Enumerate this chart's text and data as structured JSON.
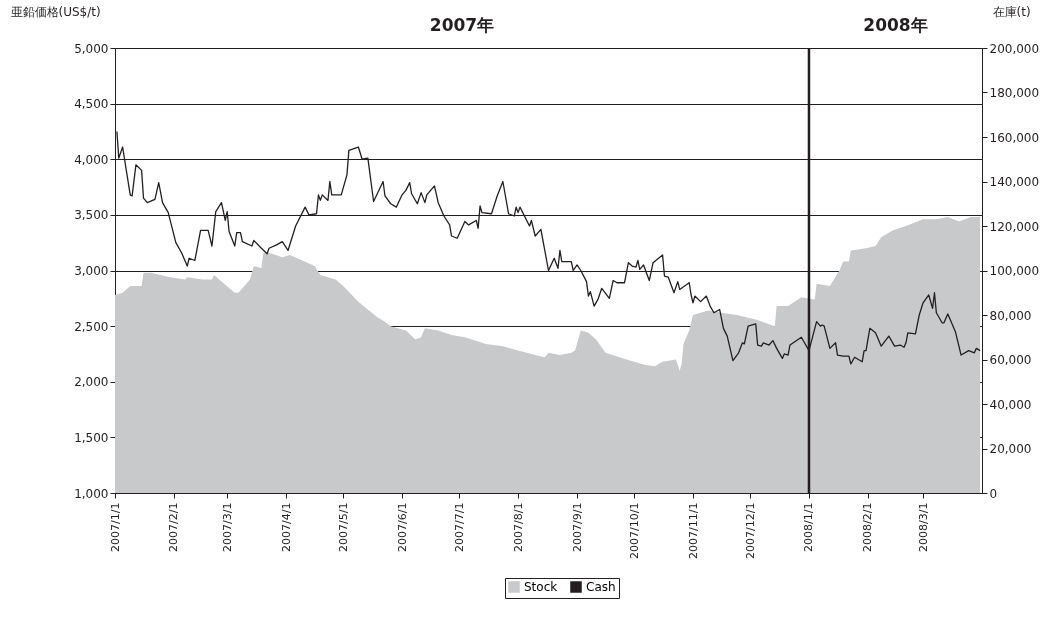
{
  "chart_data": {
    "type": "line",
    "ylabel": "亜鉛価格(US$/t)",
    "y2label": "在庫(t)",
    "ylim": [
      1000,
      5000
    ],
    "yticks": [
      {
        "value": 1000,
        "label": "1,000"
      },
      {
        "value": 1500,
        "label": "1,500"
      },
      {
        "value": 2000,
        "label": "2,000"
      },
      {
        "value": 2500,
        "label": "2,500"
      },
      {
        "value": 3000,
        "label": "3,000"
      },
      {
        "value": 3500,
        "label": "3,500"
      },
      {
        "value": 4000,
        "label": "4,000"
      },
      {
        "value": 4500,
        "label": "4,500"
      },
      {
        "value": 5000,
        "label": "5,000"
      }
    ],
    "y2lim": [
      0,
      200000
    ],
    "y2ticks": [
      0,
      {
        "value": 20000,
        "label": "20,000"
      },
      {
        "value": 40000,
        "label": "40,000"
      },
      {
        "value": 60000,
        "label": "60,000"
      },
      {
        "value": 80000,
        "label": "80,000"
      },
      {
        "value": 100000,
        "label": "100,000"
      },
      {
        "value": 120000,
        "label": "120,000"
      },
      {
        "value": 140000,
        "label": "140,000"
      },
      {
        "value": 160000,
        "label": "160,000"
      },
      {
        "value": 180000,
        "label": "180,000"
      },
      {
        "value": 200000,
        "label": "200,000"
      }
    ],
    "xlim": [
      "2007-01-01",
      "2008-04-01"
    ],
    "xticks": [
      {
        "value": "2007-01-01",
        "label": "2007/1/1"
      },
      {
        "value": "2007-02-01",
        "label": "2007/2/1"
      },
      {
        "value": "2007-03-01",
        "label": "2007/3/1"
      },
      {
        "value": "2007-04-01",
        "label": "2007/4/1"
      },
      {
        "value": "2007-05-01",
        "label": "2007/5/1"
      },
      {
        "value": "2007-06-01",
        "label": "2007/6/1"
      },
      {
        "value": "2007-07-01",
        "label": "2007/7/1"
      },
      {
        "value": "2007-08-01",
        "label": "2007/8/1"
      },
      {
        "value": "2007-09-01",
        "label": "2007/9/1"
      },
      {
        "value": "2007-10-01",
        "label": "2007/10/1"
      },
      {
        "value": "2007-11-01",
        "label": "2007/11/1"
      },
      {
        "value": "2007-12-01",
        "label": "2007/12/1"
      },
      {
        "value": "2008-01-01",
        "label": "2008/1/1"
      },
      {
        "value": "2008-02-01",
        "label": "2008/2/1"
      },
      {
        "value": "2008-03-01",
        "label": "2008/3/1"
      }
    ],
    "grid": "y",
    "legend": "bottom",
    "ref_lines": [
      {
        "axis": "x",
        "value": "2008-01-01",
        "color": "#231f20"
      }
    ],
    "annotations": [
      "2007年",
      "2008年"
    ],
    "series": [
      {
        "name": "Stock",
        "type": "area",
        "axis": "y2",
        "color": "#c8c9cb",
        "x": [
          "2007-01-01",
          "2007-01-05",
          "2007-01-09",
          "2007-01-13",
          "2007-01-15",
          "2007-01-16",
          "2007-01-20",
          "2007-01-30",
          "2007-02-07",
          "2007-02-08",
          "2007-02-16",
          "2007-02-21",
          "2007-02-22",
          "2007-03-05",
          "2007-03-07",
          "2007-03-13",
          "2007-03-15",
          "2007-03-19",
          "2007-03-20",
          "2007-03-23",
          "2007-03-30",
          "2007-04-03",
          "2007-04-16",
          "2007-04-19",
          "2007-04-27",
          "2007-05-01",
          "2007-05-09",
          "2007-05-16",
          "2007-05-19",
          "2007-05-23",
          "2007-05-26",
          "2007-06-03",
          "2007-06-08",
          "2007-06-11",
          "2007-06-13",
          "2007-06-20",
          "2007-06-27",
          "2007-07-04",
          "2007-07-15",
          "2007-07-24",
          "2007-08-01",
          "2007-08-10",
          "2007-08-15",
          "2007-08-17",
          "2007-08-23",
          "2007-08-29",
          "2007-08-31",
          "2007-09-03",
          "2007-09-07",
          "2007-09-11",
          "2007-09-16",
          "2007-09-27",
          "2007-10-07",
          "2007-10-12",
          "2007-10-16",
          "2007-10-23",
          "2007-10-25",
          "2007-10-26",
          "2007-10-27",
          "2007-10-30",
          "2007-11-01",
          "2007-11-09",
          "2007-11-16",
          "2007-11-24",
          "2007-12-04",
          "2007-12-14",
          "2007-12-15",
          "2007-12-21",
          "2007-12-28",
          "2008-01-04",
          "2008-01-05",
          "2008-01-12",
          "2008-01-17",
          "2008-01-19",
          "2008-01-22",
          "2008-01-23",
          "2008-01-31",
          "2008-02-05",
          "2008-02-08",
          "2008-02-14",
          "2008-02-21",
          "2008-03-01",
          "2008-03-08",
          "2008-03-14",
          "2008-03-20",
          "2008-03-26",
          "2008-03-31"
        ],
        "values": [
          89000,
          90000,
          93000,
          93000,
          93000,
          99000,
          99000,
          97000,
          96000,
          97000,
          96000,
          96000,
          98000,
          90000,
          90000,
          96000,
          102000,
          101000,
          108000,
          108000,
          106000,
          107000,
          102000,
          98000,
          96000,
          93000,
          86000,
          81000,
          79000,
          77000,
          75000,
          73000,
          69000,
          70000,
          74000,
          73000,
          71000,
          70000,
          67000,
          66000,
          64000,
          62000,
          61000,
          63000,
          62000,
          63000,
          64000,
          73000,
          72000,
          69000,
          63000,
          60000,
          57500,
          57000,
          59000,
          60000,
          55000,
          58000,
          67000,
          73000,
          80000,
          82000,
          81000,
          80000,
          78000,
          75000,
          84000,
          84000,
          88000,
          87000,
          94000,
          93000,
          100000,
          104000,
          104000,
          109000,
          110000,
          111000,
          115000,
          118000,
          120000,
          123000,
          123000,
          124000,
          122000,
          124000,
          124000
        ]
      },
      {
        "name": "Cash",
        "color": "#231f20",
        "x": [
          "2007-01-02",
          "2007-01-03",
          "2007-01-05",
          "2007-01-09",
          "2007-01-10",
          "2007-01-12",
          "2007-01-15",
          "2007-01-16",
          "2007-01-18",
          "2007-01-22",
          "2007-01-24",
          "2007-01-26",
          "2007-01-29",
          "2007-02-02",
          "2007-02-05",
          "2007-02-08",
          "2007-02-09",
          "2007-02-12",
          "2007-02-15",
          "2007-02-19",
          "2007-02-21",
          "2007-02-23",
          "2007-02-26",
          "2007-02-28",
          "2007-03-01",
          "2007-03-02",
          "2007-03-05",
          "2007-03-06",
          "2007-03-08",
          "2007-03-09",
          "2007-03-14",
          "2007-03-15",
          "2007-03-19",
          "2007-03-22",
          "2007-03-23",
          "2007-03-27",
          "2007-03-30",
          "2007-04-02",
          "2007-04-06",
          "2007-04-11",
          "2007-04-13",
          "2007-04-17",
          "2007-04-18",
          "2007-04-19",
          "2007-04-20",
          "2007-04-23",
          "2007-04-24",
          "2007-04-25",
          "2007-04-30",
          "2007-05-03",
          "2007-05-04",
          "2007-05-09",
          "2007-05-11",
          "2007-05-14",
          "2007-05-17",
          "2007-05-22",
          "2007-05-23",
          "2007-05-26",
          "2007-05-29",
          "2007-06-01",
          "2007-06-03",
          "2007-06-05",
          "2007-06-06",
          "2007-06-09",
          "2007-06-11",
          "2007-06-13",
          "2007-06-14",
          "2007-06-18",
          "2007-06-20",
          "2007-06-23",
          "2007-06-26",
          "2007-06-27",
          "2007-06-30",
          "2007-07-04",
          "2007-07-06",
          "2007-07-10",
          "2007-07-11",
          "2007-07-12",
          "2007-07-13",
          "2007-07-18",
          "2007-07-21",
          "2007-07-24",
          "2007-07-27",
          "2007-07-30",
          "2007-07-31",
          "2007-08-01",
          "2007-08-02",
          "2007-08-07",
          "2007-08-08",
          "2007-08-10",
          "2007-08-13",
          "2007-08-17",
          "2007-08-20",
          "2007-08-22",
          "2007-08-23",
          "2007-08-24",
          "2007-08-29",
          "2007-08-30",
          "2007-09-01",
          "2007-09-03",
          "2007-09-06",
          "2007-09-07",
          "2007-09-08",
          "2007-09-10",
          "2007-09-12",
          "2007-09-14",
          "2007-09-18",
          "2007-09-20",
          "2007-09-22",
          "2007-09-26",
          "2007-09-28",
          "2007-09-30",
          "2007-10-02",
          "2007-10-03",
          "2007-10-04",
          "2007-10-06",
          "2007-10-09",
          "2007-10-11",
          "2007-10-16",
          "2007-10-17",
          "2007-10-19",
          "2007-10-22",
          "2007-10-24",
          "2007-10-25",
          "2007-10-30",
          "2007-10-31",
          "2007-11-01",
          "2007-11-02",
          "2007-11-05",
          "2007-11-08",
          "2007-11-10",
          "2007-11-12",
          "2007-11-15",
          "2007-11-17",
          "2007-11-19",
          "2007-11-22",
          "2007-11-25",
          "2007-11-27",
          "2007-11-28",
          "2007-11-30",
          "2007-12-04",
          "2007-12-05",
          "2007-12-07",
          "2007-12-08",
          "2007-12-11",
          "2007-12-13",
          "2007-12-15",
          "2007-12-18",
          "2007-12-19",
          "2007-12-21",
          "2007-12-22",
          "2007-12-28",
          "2008-01-01",
          "2008-01-05",
          "2008-01-07",
          "2008-01-08",
          "2008-01-09",
          "2008-01-12",
          "2008-01-15",
          "2008-01-16",
          "2008-01-19",
          "2008-01-22",
          "2008-01-23",
          "2008-01-25",
          "2008-01-29",
          "2008-01-30",
          "2008-01-31",
          "2008-02-02",
          "2008-02-05",
          "2008-02-08",
          "2008-02-12",
          "2008-02-15",
          "2008-02-18",
          "2008-02-20",
          "2008-02-21",
          "2008-02-22",
          "2008-02-26",
          "2008-02-28",
          "2008-03-01",
          "2008-03-04",
          "2008-03-06",
          "2008-03-07",
          "2008-03-08",
          "2008-03-11",
          "2008-03-12",
          "2008-03-14",
          "2008-03-16",
          "2008-03-18",
          "2008-03-21",
          "2008-03-25",
          "2008-03-28",
          "2008-03-29",
          "2008-03-31"
        ],
        "values": [
          4250,
          4010,
          4110,
          3680,
          3670,
          3950,
          3900,
          3650,
          3610,
          3640,
          3790,
          3610,
          3520,
          3250,
          3160,
          3040,
          3110,
          3090,
          3360,
          3360,
          3220,
          3530,
          3610,
          3450,
          3530,
          3350,
          3220,
          3340,
          3340,
          3260,
          3220,
          3270,
          3200,
          3150,
          3200,
          3230,
          3260,
          3180,
          3400,
          3570,
          3500,
          3510,
          3680,
          3630,
          3680,
          3630,
          3800,
          3680,
          3680,
          3860,
          4080,
          4110,
          4000,
          4010,
          3620,
          3800,
          3670,
          3600,
          3570,
          3680,
          3720,
          3790,
          3690,
          3600,
          3700,
          3610,
          3680,
          3760,
          3610,
          3490,
          3410,
          3310,
          3290,
          3440,
          3410,
          3450,
          3380,
          3580,
          3520,
          3510,
          3670,
          3800,
          3510,
          3490,
          3570,
          3520,
          3570,
          3400,
          3450,
          3310,
          3370,
          3000,
          3110,
          3020,
          3180,
          3080,
          3080,
          3000,
          3050,
          3000,
          2900,
          2770,
          2810,
          2680,
          2740,
          2840,
          2750,
          2910,
          2890,
          2890,
          3070,
          3040,
          3030,
          3090,
          3010,
          3050,
          2910,
          3070,
          3140,
          2950,
          2940,
          2800,
          2900,
          2830,
          2890,
          2780,
          2710,
          2770,
          2720,
          2770,
          2680,
          2620,
          2650,
          2480,
          2410,
          2190,
          2260,
          2350,
          2340,
          2500,
          2520,
          2330,
          2320,
          2350,
          2330,
          2370,
          2300,
          2210,
          2250,
          2240,
          2330,
          2400,
          2280,
          2540,
          2500,
          2510,
          2500,
          2300,
          2350,
          2240,
          2230,
          2230,
          2160,
          2220,
          2180,
          2280,
          2280,
          2480,
          2440,
          2320,
          2410,
          2320,
          2330,
          2310,
          2350,
          2440,
          2430,
          2600,
          2710,
          2780,
          2660,
          2800,
          2620,
          2530,
          2530,
          2610,
          2530,
          2450,
          2240,
          2280,
          2260,
          2300,
          2280
        ]
      }
    ]
  }
}
